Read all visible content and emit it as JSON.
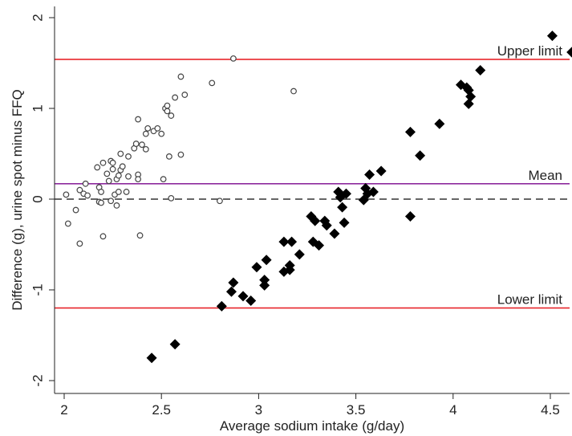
{
  "chart_data": {
    "type": "scatter",
    "title": "",
    "xlabel": "Average sodium intake (g/day)",
    "ylabel": "Difference (g), urine spot minus FFQ",
    "xlim": [
      2,
      4.6
    ],
    "ylim": [
      -2,
      2
    ],
    "xticks": [
      "2",
      "2.5",
      "3",
      "3.5",
      "4",
      "4.5"
    ],
    "yticks": [
      "-2",
      "-1",
      "0",
      "1",
      "2"
    ],
    "grid": false,
    "legend": "none",
    "reference_lines": [
      {
        "label": "Upper limit",
        "y": 1.54,
        "color": "#e8262c"
      },
      {
        "label": "Mean",
        "y": 0.17,
        "color": "#8e2a9e"
      },
      {
        "label": "",
        "y": 0,
        "color": "#333333",
        "style": "dashed"
      },
      {
        "label": "Lower limit",
        "y": -1.2,
        "color": "#e8262c"
      }
    ],
    "series": [
      {
        "marker": "hollow-circle",
        "color": "#444444",
        "points": [
          [
            2.01,
            0.05
          ],
          [
            2.02,
            -0.27
          ],
          [
            2.06,
            -0.12
          ],
          [
            2.08,
            -0.49
          ],
          [
            2.08,
            0.1
          ],
          [
            2.1,
            0.06
          ],
          [
            2.11,
            0.17
          ],
          [
            2.12,
            0.04
          ],
          [
            2.17,
            0.35
          ],
          [
            2.18,
            -0.03
          ],
          [
            2.18,
            0.13
          ],
          [
            2.19,
            0.08
          ],
          [
            2.19,
            -0.04
          ],
          [
            2.2,
            -0.41
          ],
          [
            2.2,
            0.4
          ],
          [
            2.22,
            0.28
          ],
          [
            2.23,
            0.2
          ],
          [
            2.24,
            0.42
          ],
          [
            2.24,
            -0.02
          ],
          [
            2.25,
            0.33
          ],
          [
            2.25,
            0.4
          ],
          [
            2.26,
            0.05
          ],
          [
            2.27,
            0.22
          ],
          [
            2.27,
            -0.07
          ],
          [
            2.28,
            0.26
          ],
          [
            2.28,
            0.08
          ],
          [
            2.29,
            0.5
          ],
          [
            2.29,
            0.32
          ],
          [
            2.3,
            0.36
          ],
          [
            2.32,
            0.08
          ],
          [
            2.33,
            0.25
          ],
          [
            2.33,
            0.47
          ],
          [
            2.36,
            0.56
          ],
          [
            2.37,
            0.61
          ],
          [
            2.38,
            0.27
          ],
          [
            2.38,
            0.88
          ],
          [
            2.38,
            0.22
          ],
          [
            2.39,
            -0.4
          ],
          [
            2.4,
            0.6
          ],
          [
            2.42,
            0.55
          ],
          [
            2.42,
            0.72
          ],
          [
            2.43,
            0.78
          ],
          [
            2.46,
            0.75
          ],
          [
            2.48,
            0.78
          ],
          [
            2.5,
            0.72
          ],
          [
            2.51,
            0.22
          ],
          [
            2.52,
            1.0
          ],
          [
            2.53,
            1.03
          ],
          [
            2.53,
            0.97
          ],
          [
            2.54,
            0.47
          ],
          [
            2.55,
            0.92
          ],
          [
            2.55,
            0.01
          ],
          [
            2.57,
            1.12
          ],
          [
            2.6,
            0.49
          ],
          [
            2.6,
            1.35
          ],
          [
            2.62,
            1.15
          ],
          [
            2.76,
            1.28
          ],
          [
            2.8,
            -0.02
          ],
          [
            2.87,
            1.55
          ],
          [
            3.18,
            1.19
          ]
        ]
      },
      {
        "marker": "filled-diamond",
        "color": "#000000",
        "points": [
          [
            2.45,
            -1.75
          ],
          [
            2.57,
            -1.6
          ],
          [
            2.81,
            -1.18
          ],
          [
            2.86,
            -1.02
          ],
          [
            2.87,
            -0.92
          ],
          [
            2.92,
            -1.07
          ],
          [
            2.96,
            -1.12
          ],
          [
            2.99,
            -0.75
          ],
          [
            3.03,
            -0.89
          ],
          [
            3.03,
            -0.95
          ],
          [
            3.04,
            -0.67
          ],
          [
            3.13,
            -0.47
          ],
          [
            3.13,
            -0.8
          ],
          [
            3.16,
            -0.73
          ],
          [
            3.16,
            -0.78
          ],
          [
            3.17,
            -0.47
          ],
          [
            3.21,
            -0.61
          ],
          [
            3.27,
            -0.19
          ],
          [
            3.28,
            -0.47
          ],
          [
            3.29,
            -0.24
          ],
          [
            3.31,
            -0.51
          ],
          [
            3.34,
            -0.24
          ],
          [
            3.35,
            -0.29
          ],
          [
            3.39,
            -0.38
          ],
          [
            3.41,
            0.08
          ],
          [
            3.42,
            0.02
          ],
          [
            3.43,
            -0.09
          ],
          [
            3.44,
            -0.26
          ],
          [
            3.45,
            0.06
          ],
          [
            3.54,
            -0.01
          ],
          [
            3.55,
            0.12
          ],
          [
            3.56,
            0.06
          ],
          [
            3.57,
            0.27
          ],
          [
            3.59,
            0.08
          ],
          [
            3.63,
            0.31
          ],
          [
            3.78,
            -0.19
          ],
          [
            3.78,
            0.74
          ],
          [
            3.83,
            0.48
          ],
          [
            3.93,
            0.83
          ],
          [
            4.04,
            1.26
          ],
          [
            4.07,
            1.23
          ],
          [
            4.08,
            1.05
          ],
          [
            4.08,
            1.2
          ],
          [
            4.09,
            1.13
          ],
          [
            4.14,
            1.42
          ],
          [
            4.51,
            1.8
          ],
          [
            4.61,
            1.62
          ]
        ]
      }
    ]
  }
}
